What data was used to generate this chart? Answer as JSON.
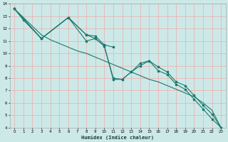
{
  "xlabel": "Humidex (Indice chaleur)",
  "xlim": [
    -0.5,
    23.5
  ],
  "ylim": [
    4,
    14
  ],
  "yticks": [
    4,
    5,
    6,
    7,
    8,
    9,
    10,
    11,
    12,
    13,
    14
  ],
  "xticks": [
    0,
    1,
    2,
    3,
    4,
    5,
    6,
    7,
    8,
    9,
    10,
    11,
    12,
    13,
    14,
    15,
    16,
    17,
    18,
    19,
    20,
    21,
    22,
    23
  ],
  "bg_color": "#cce9e8",
  "grid_color": "#f0aaaa",
  "line_color": "#1a7a6e",
  "series": [
    {
      "x": [
        0,
        1,
        3,
        6,
        8,
        9,
        10,
        11
      ],
      "y": [
        13.6,
        12.7,
        11.2,
        12.9,
        11.5,
        11.4,
        10.7,
        10.5
      ],
      "marker": true
    },
    {
      "x": [
        0,
        3,
        6,
        8,
        9,
        10,
        11,
        12,
        13,
        14,
        15,
        16,
        17,
        18,
        19,
        20,
        21,
        22,
        23
      ],
      "y": [
        13.6,
        11.2,
        12.9,
        11.0,
        11.2,
        10.6,
        7.9,
        7.9,
        8.5,
        9.0,
        9.4,
        8.6,
        8.3,
        7.5,
        7.1,
        6.3,
        5.5,
        4.7,
        4.0
      ],
      "marker": true
    },
    {
      "x": [
        0,
        3,
        6,
        8,
        9,
        10,
        11,
        12,
        13,
        14,
        15,
        16,
        17,
        18,
        19,
        20,
        21,
        22,
        23
      ],
      "y": [
        13.6,
        11.2,
        12.9,
        11.5,
        11.2,
        10.6,
        8.0,
        7.9,
        8.5,
        9.2,
        9.4,
        8.9,
        8.5,
        7.7,
        7.4,
        6.6,
        5.8,
        5.1,
        4.0
      ],
      "marker": true
    },
    {
      "x": [
        0,
        1,
        2,
        3,
        4,
        5,
        6,
        7,
        8,
        9,
        10,
        11,
        12,
        13,
        14,
        15,
        16,
        17,
        18,
        19,
        20,
        21,
        22,
        23
      ],
      "y": [
        13.6,
        12.9,
        12.2,
        11.5,
        11.1,
        10.8,
        10.5,
        10.2,
        10.0,
        9.7,
        9.4,
        9.1,
        8.8,
        8.5,
        8.2,
        7.9,
        7.7,
        7.4,
        7.1,
        6.8,
        6.5,
        6.0,
        5.4,
        4.0
      ],
      "marker": false
    }
  ]
}
